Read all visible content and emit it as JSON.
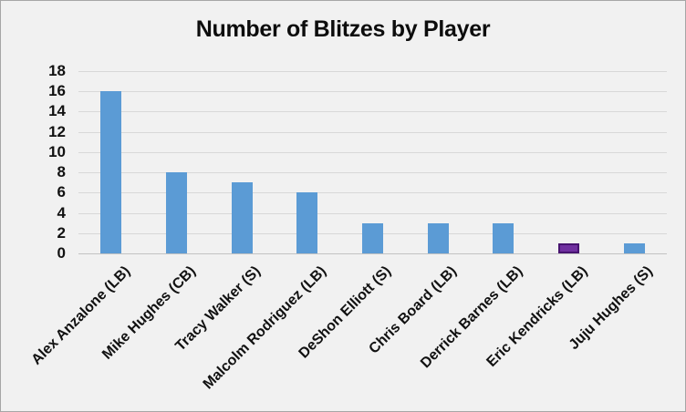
{
  "chart_data": {
    "type": "bar",
    "title": "Number of Blitzes by Player",
    "categories": [
      "Alex Anzalone (LB)",
      "Mike Hughes (CB)",
      "Tracy Walker (S)",
      "Malcolm Rodriguez (LB)",
      "DeShon Elliott (S)",
      "Chris Board (LB)",
      "Derrick Barnes (LB)",
      "Eric Kendricks (LB)",
      "Juju Hughes (S)"
    ],
    "values": [
      16,
      8,
      7,
      6,
      3,
      3,
      3,
      1,
      1
    ],
    "bar_colors": [
      "#5b9bd5",
      "#5b9bd5",
      "#5b9bd5",
      "#5b9bd5",
      "#5b9bd5",
      "#5b9bd5",
      "#5b9bd5",
      "#7030a0",
      "#5b9bd5"
    ],
    "highlight": {
      "category": "Eric Kendricks (LB)",
      "fill_color": "#7030a0",
      "border_color": "#471470"
    },
    "default_bar_color": "#5b9bd5",
    "xlabel": "",
    "ylabel": "",
    "ylim": [
      0,
      18
    ],
    "ytick_step": 2,
    "yticks": [
      0,
      2,
      4,
      6,
      8,
      10,
      12,
      14,
      16,
      18
    ],
    "grid": "horizontal",
    "legend": "none",
    "x_label_rotation_deg": 45,
    "background_color": "#f1f1f1",
    "gridline_color": "#d8d8d8",
    "axis_line_color": "#c2c2c2",
    "text_color": "#111111"
  }
}
